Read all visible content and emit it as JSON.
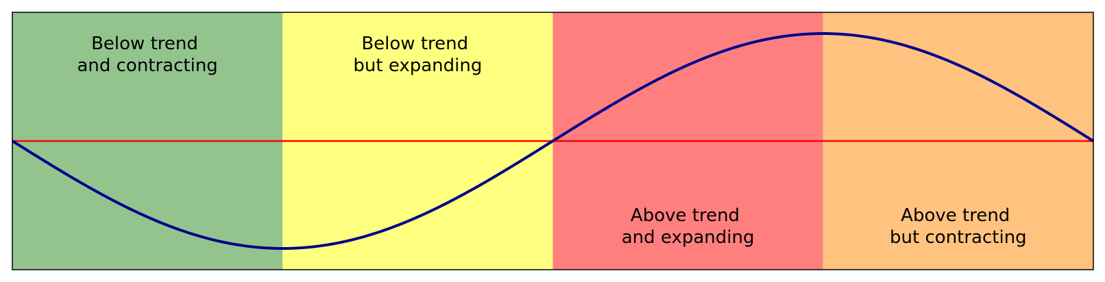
{
  "colors": {
    "phase_1": "#93c48e",
    "phase_2": "#ffff7f",
    "phase_3": "#ff7f7f",
    "phase_4": "#ffc27f",
    "trend_line": "#ff0000",
    "cycle_curve": "#00008b",
    "frame": "#000000"
  },
  "phases": [
    {
      "line1": "Below trend",
      "line2": "and contracting",
      "label_position": "top"
    },
    {
      "line1": "Below trend",
      "line2": "but expanding",
      "label_position": "top"
    },
    {
      "line1": "Above trend",
      "line2": "and expanding",
      "label_position": "bottom"
    },
    {
      "line1": "Above trend",
      "line2": "but contracting",
      "label_position": "bottom"
    }
  ],
  "curve": {
    "shape": "sine",
    "starts_at": "trend, falling",
    "full_cycles": 1
  }
}
